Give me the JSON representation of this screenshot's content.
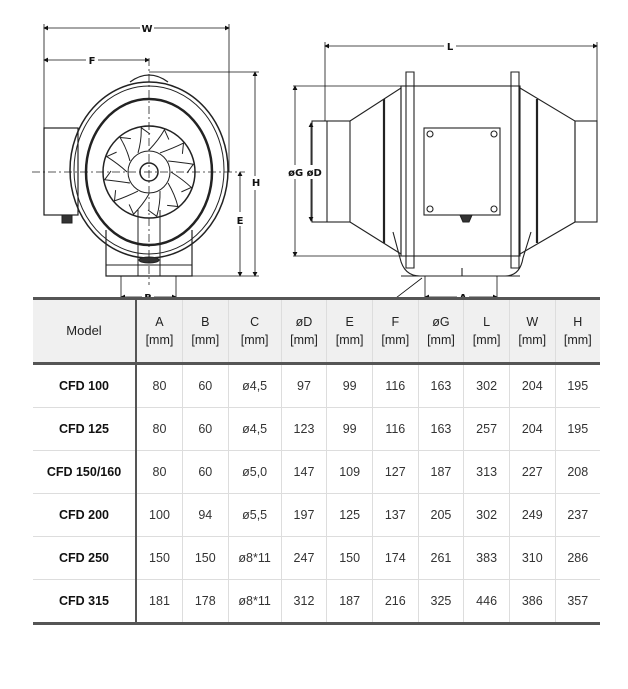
{
  "drawing": {
    "front_labels": {
      "w": "W",
      "f": "F",
      "h": "H",
      "e": "E",
      "b": "B"
    },
    "side_labels": {
      "l": "L",
      "g_d": "øG øD",
      "c": "C",
      "a": "A"
    }
  },
  "table": {
    "headers": [
      {
        "name": "Model",
        "unit": ""
      },
      {
        "name": "A",
        "unit": "[mm]"
      },
      {
        "name": "B",
        "unit": "[mm]"
      },
      {
        "name": "C",
        "unit": "[mm]"
      },
      {
        "name": "øD",
        "unit": "[mm]"
      },
      {
        "name": "E",
        "unit": "[mm]"
      },
      {
        "name": "F",
        "unit": "[mm]"
      },
      {
        "name": "øG",
        "unit": "[mm]"
      },
      {
        "name": "L",
        "unit": "[mm]"
      },
      {
        "name": "W",
        "unit": "[mm]"
      },
      {
        "name": "H",
        "unit": "[mm]"
      }
    ],
    "rows": [
      [
        "CFD 100",
        "80",
        "60",
        "ø4,5",
        "97",
        "99",
        "116",
        "163",
        "302",
        "204",
        "195"
      ],
      [
        "CFD 125",
        "80",
        "60",
        "ø4,5",
        "123",
        "99",
        "116",
        "163",
        "257",
        "204",
        "195"
      ],
      [
        "CFD 150/160",
        "80",
        "60",
        "ø5,0",
        "147",
        "109",
        "127",
        "187",
        "313",
        "227",
        "208"
      ],
      [
        "CFD 200",
        "100",
        "94",
        "ø5,5",
        "197",
        "125",
        "137",
        "205",
        "302",
        "249",
        "237"
      ],
      [
        "CFD 250",
        "150",
        "150",
        "ø8*11",
        "247",
        "150",
        "174",
        "261",
        "383",
        "310",
        "286"
      ],
      [
        "CFD 315",
        "181",
        "178",
        "ø8*11",
        "312",
        "187",
        "216",
        "325",
        "446",
        "386",
        "357"
      ]
    ]
  }
}
